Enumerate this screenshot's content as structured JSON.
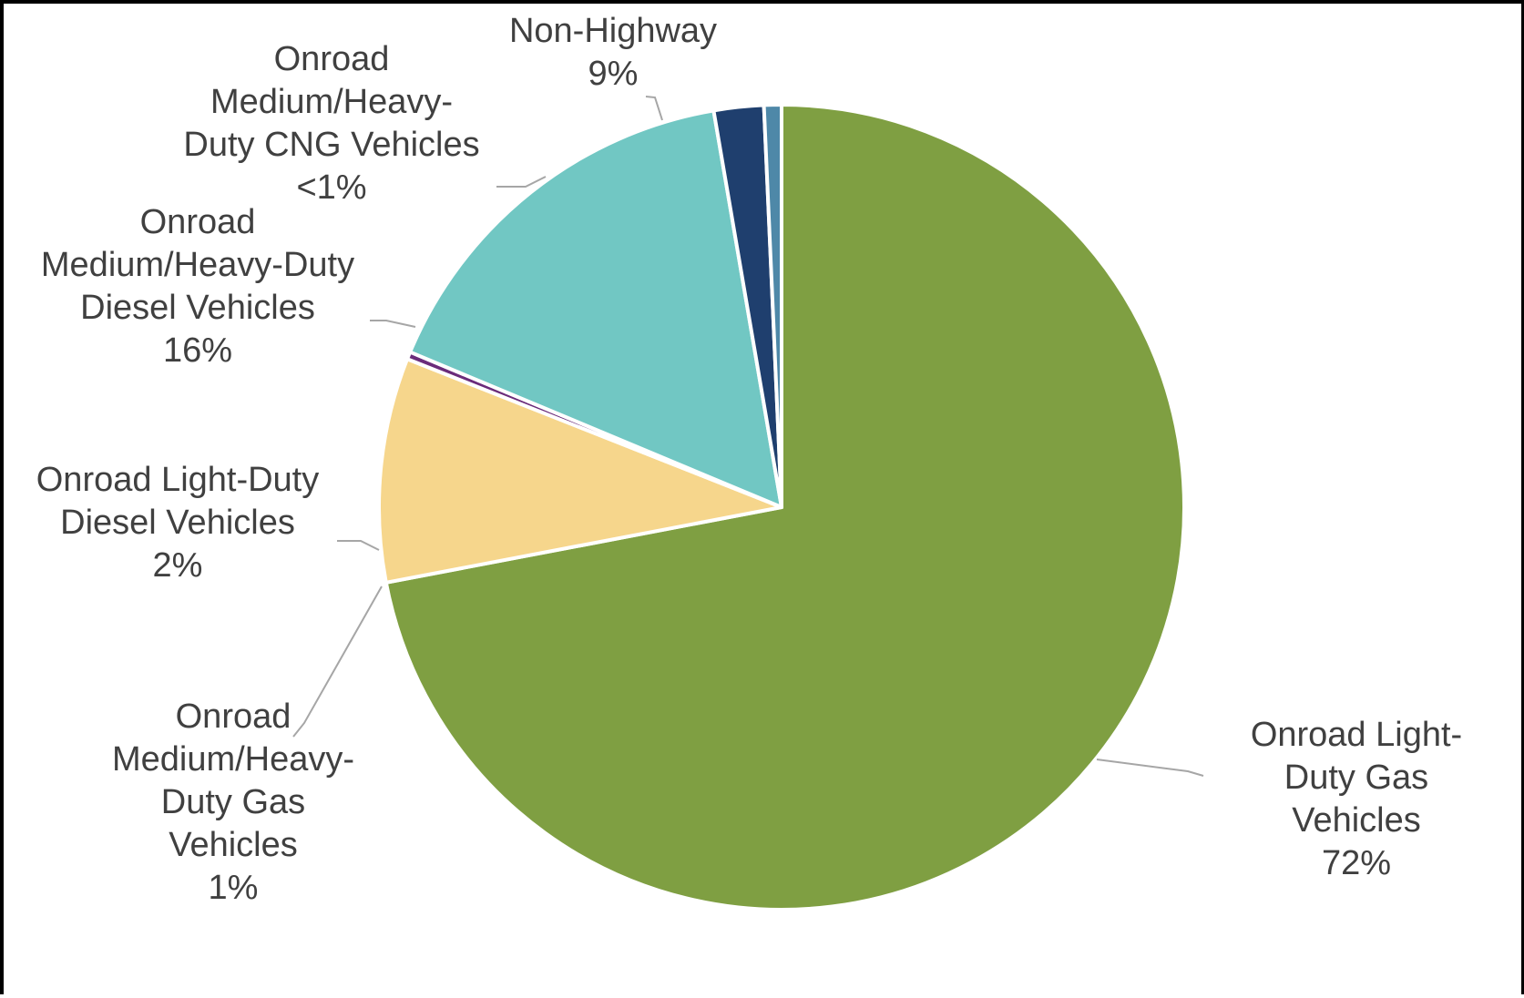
{
  "chart_data": {
    "type": "pie",
    "title": "",
    "start_angle_deg": 0,
    "direction": "clockwise",
    "series": [
      {
        "values": [
          72,
          9,
          0.3,
          16,
          2,
          0.7
        ],
        "display": [
          "72%",
          "9%",
          "<1%",
          "16%",
          "2%",
          "1%"
        ]
      }
    ],
    "categories": [
      "Onroad Light-Duty Gas Vehicles",
      "Non-Highway",
      "Onroad Medium/Heavy-Duty CNG Vehicles",
      "Onroad Medium/Heavy-Duty Diesel Vehicles",
      "Onroad Light-Duty Diesel Vehicles",
      "Onroad Medium/Heavy-Duty Gas Vehicles"
    ],
    "colors": [
      "#7f9f42",
      "#f6d68c",
      "#6b2c7a",
      "#71c7c3",
      "#1f3f6e",
      "#4e88a8"
    ],
    "labels": [
      {
        "lines": [
          "Onroad Light-",
          "Duty Gas",
          "Vehicles"
        ],
        "pct": "72%"
      },
      {
        "lines": [
          "Non-Highway"
        ],
        "pct": "9%"
      },
      {
        "lines": [
          "Onroad",
          "Medium/Heavy-",
          "Duty CNG Vehicles"
        ],
        "pct": "<1%"
      },
      {
        "lines": [
          "Onroad",
          "Medium/Heavy-Duty",
          "Diesel Vehicles"
        ],
        "pct": "16%"
      },
      {
        "lines": [
          "Onroad Light-Duty",
          "Diesel Vehicles"
        ],
        "pct": "2%"
      },
      {
        "lines": [
          "Onroad",
          "Medium/Heavy-",
          "Duty Gas",
          "Vehicles"
        ],
        "pct": "1%"
      }
    ],
    "legend": "none"
  }
}
